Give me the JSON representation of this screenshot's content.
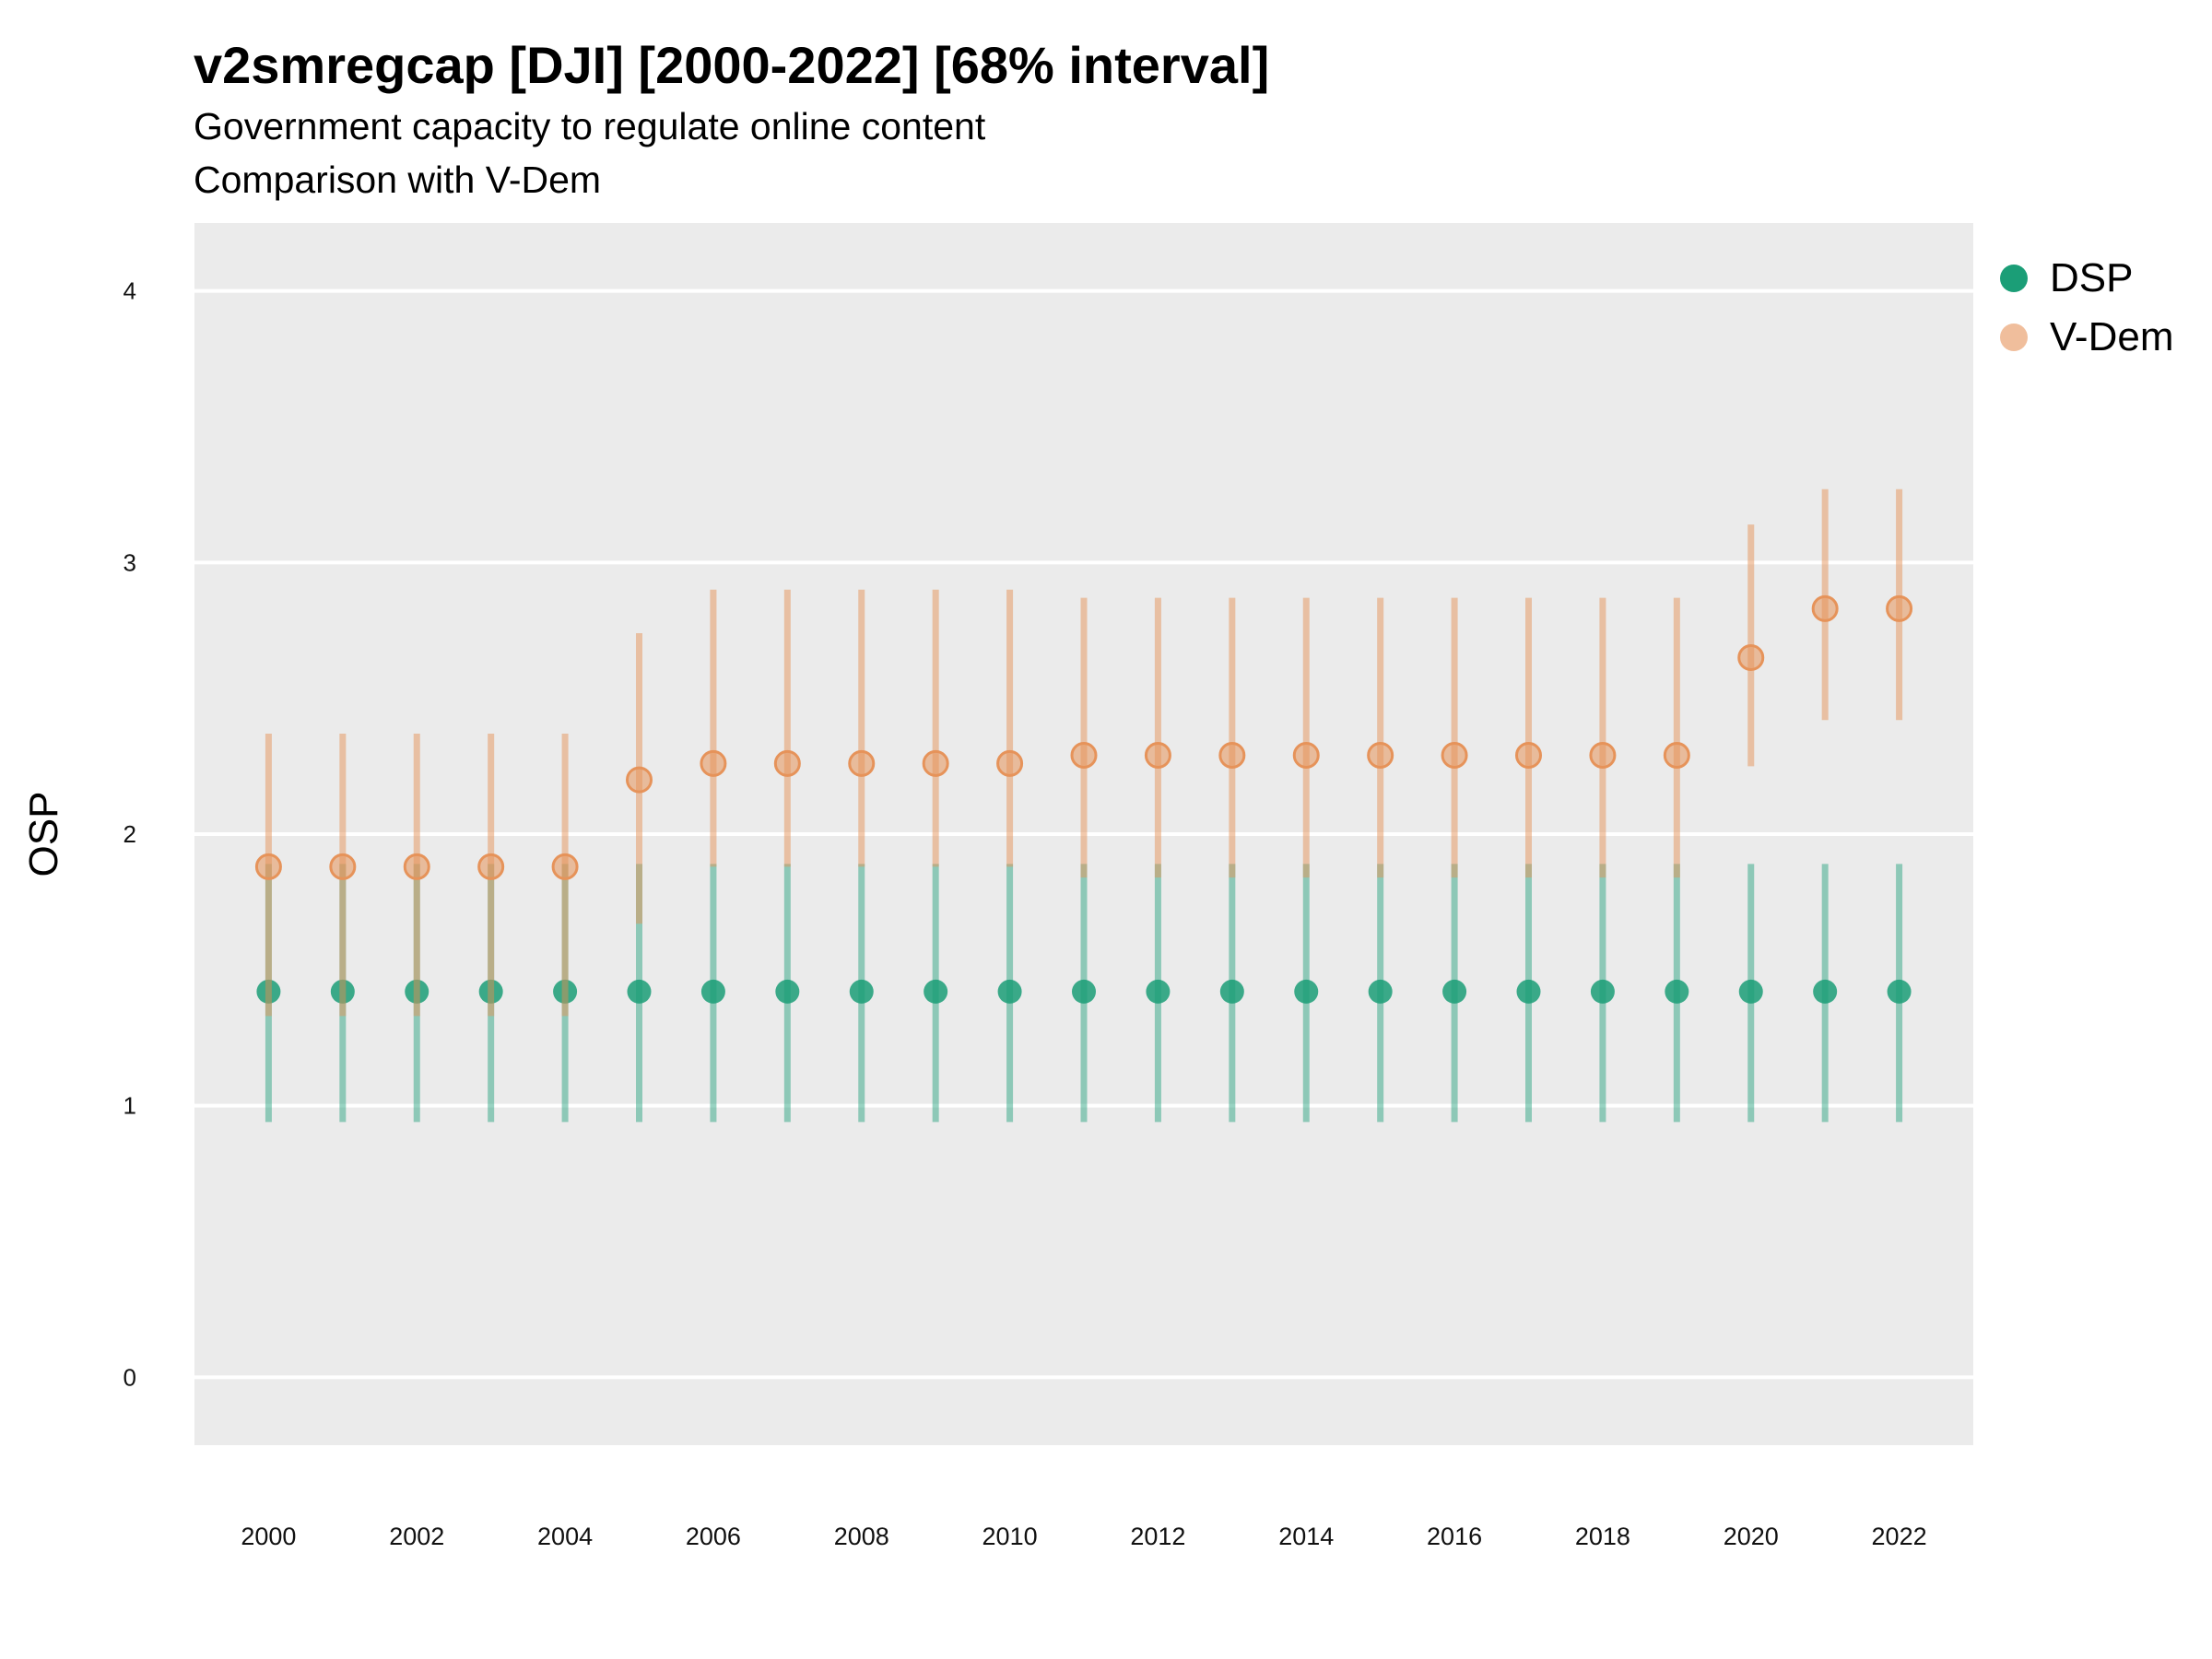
{
  "title": "v2smregcap [DJI] [2000-2022] [68% interval]",
  "subtitle_line1": "Government capacity to regulate online content",
  "subtitle_line2": "Comparison with V-Dem",
  "colors": {
    "panel": "#ebebeb",
    "grid": "#ffffff",
    "dsp": "#1b9e77",
    "vdem": "#e6935a"
  },
  "chart_data": {
    "type": "scatter",
    "ylabel": "OSP",
    "xlabel": "",
    "ylim": [
      -0.25,
      4.25
    ],
    "yticks": [
      0,
      1,
      2,
      3,
      4
    ],
    "xticks": [
      2000,
      2002,
      2004,
      2006,
      2008,
      2010,
      2012,
      2014,
      2016,
      2018,
      2020,
      2022
    ],
    "x": [
      2000,
      2001,
      2002,
      2003,
      2004,
      2005,
      2006,
      2007,
      2008,
      2009,
      2010,
      2011,
      2012,
      2013,
      2014,
      2015,
      2016,
      2017,
      2018,
      2019,
      2020,
      2021,
      2022
    ],
    "grid": true,
    "legend": "right",
    "series": [
      {
        "name": "DSP",
        "color": "#1b9e77",
        "values": [
          1.42,
          1.42,
          1.42,
          1.42,
          1.42,
          1.42,
          1.42,
          1.42,
          1.42,
          1.42,
          1.42,
          1.42,
          1.42,
          1.42,
          1.42,
          1.42,
          1.42,
          1.42,
          1.42,
          1.42,
          1.42,
          1.42,
          1.42
        ],
        "lower": [
          0.94,
          0.94,
          0.94,
          0.94,
          0.94,
          0.94,
          0.94,
          0.94,
          0.94,
          0.94,
          0.94,
          0.94,
          0.94,
          0.94,
          0.94,
          0.94,
          0.94,
          0.94,
          0.94,
          0.94,
          0.94,
          0.94,
          0.94
        ],
        "upper": [
          1.89,
          1.89,
          1.89,
          1.89,
          1.89,
          1.89,
          1.89,
          1.89,
          1.89,
          1.89,
          1.89,
          1.89,
          1.89,
          1.89,
          1.89,
          1.89,
          1.89,
          1.89,
          1.89,
          1.89,
          1.89,
          1.89,
          1.89
        ]
      },
      {
        "name": "V-Dem",
        "color": "#e6935a",
        "values": [
          1.88,
          1.88,
          1.88,
          1.88,
          1.88,
          2.2,
          2.26,
          2.26,
          2.26,
          2.26,
          2.26,
          2.29,
          2.29,
          2.29,
          2.29,
          2.29,
          2.29,
          2.29,
          2.29,
          2.29,
          2.65,
          2.83,
          2.83
        ],
        "lower": [
          1.33,
          1.33,
          1.33,
          1.33,
          1.33,
          1.67,
          1.88,
          1.88,
          1.88,
          1.88,
          1.88,
          1.84,
          1.84,
          1.84,
          1.84,
          1.84,
          1.84,
          1.84,
          1.84,
          1.84,
          2.25,
          2.42,
          2.42
        ],
        "upper": [
          2.37,
          2.37,
          2.37,
          2.37,
          2.37,
          2.74,
          2.9,
          2.9,
          2.9,
          2.9,
          2.9,
          2.87,
          2.87,
          2.87,
          2.87,
          2.87,
          2.87,
          2.87,
          2.87,
          2.87,
          3.14,
          3.27,
          3.27
        ]
      }
    ]
  }
}
